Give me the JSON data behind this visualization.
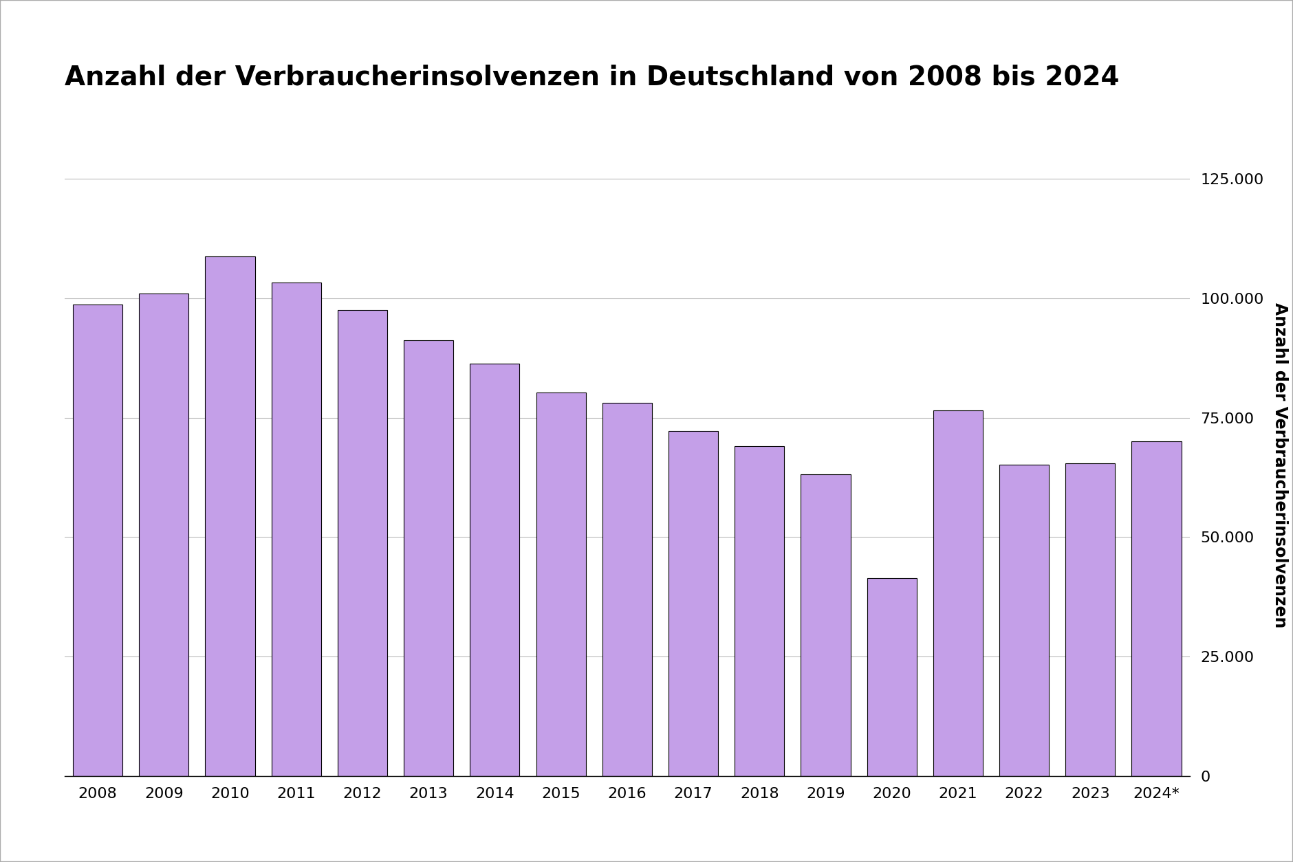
{
  "years": [
    "2008",
    "2009",
    "2010",
    "2011",
    "2012",
    "2013",
    "2014",
    "2015",
    "2016",
    "2017",
    "2018",
    "2019",
    "2020",
    "2021",
    "2022",
    "2023",
    "2024*"
  ],
  "values": [
    98776,
    101000,
    108798,
    103289,
    97608,
    91200,
    86291,
    80257,
    78181,
    72290,
    69050,
    63093,
    41349,
    76584,
    65100,
    65500,
    70000
  ],
  "bar_color": "#c49fe8",
  "bar_edge_color": "#000000",
  "bar_edge_width": 0.8,
  "title": "Anzahl der Verbraucherinsolvenzen in Deutschland von 2008 bis 2024",
  "ylabel": "Anzahl der Verbraucherinsolvenzen",
  "ylim": [
    0,
    130000
  ],
  "yticks": [
    0,
    25000,
    50000,
    75000,
    100000,
    125000
  ],
  "ytick_labels": [
    "0",
    "25.000",
    "50.000",
    "75.000",
    "100.000",
    "125.000"
  ],
  "background_color": "#ffffff",
  "title_fontsize": 28,
  "tick_fontsize": 16,
  "ylabel_fontsize": 17,
  "grid_color": "#bbbbbb",
  "grid_linewidth": 0.8,
  "outer_border_color": "#aaaaaa",
  "outer_border_linewidth": 1.5
}
